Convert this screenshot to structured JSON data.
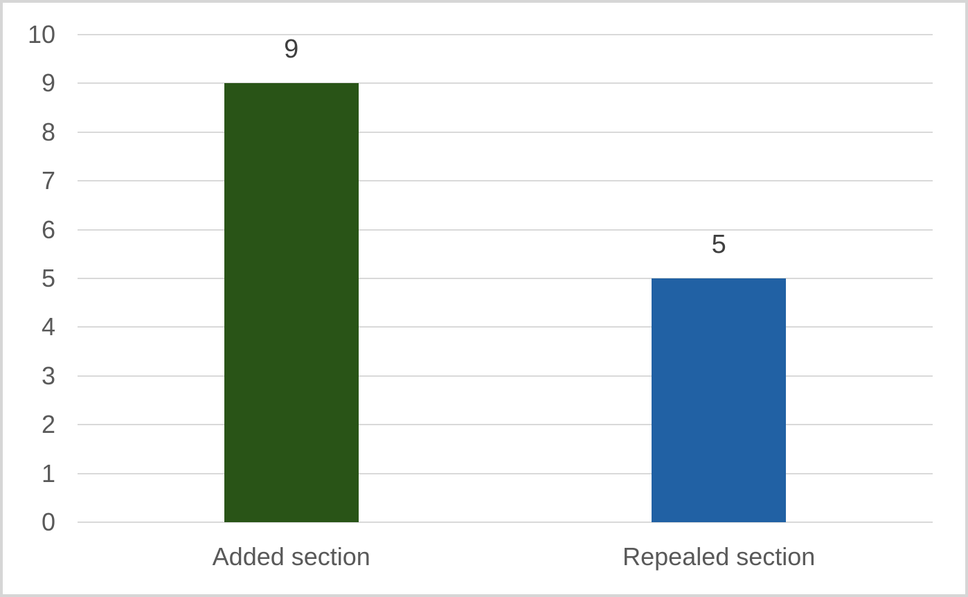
{
  "chart_data": {
    "type": "bar",
    "title": "",
    "xlabel": "",
    "ylabel": "",
    "categories": [
      "Added section",
      "Repealed section"
    ],
    "values": [
      9,
      5
    ],
    "data_labels": [
      "9",
      "5"
    ],
    "bar_colors": [
      "#295417",
      "#2161A4"
    ],
    "ylim": [
      0,
      10
    ],
    "yticks": [
      "0",
      "1",
      "2",
      "3",
      "4",
      "5",
      "6",
      "7",
      "8",
      "9",
      "10"
    ],
    "grid": true,
    "legend_position": "none"
  },
  "colors": {
    "grid": "#D9D9D9",
    "axis_text": "#595959",
    "category_text": "#595959",
    "data_label_text": "#3F3F3F",
    "background": "#FFFFFF",
    "border": "#D6D6D6"
  }
}
